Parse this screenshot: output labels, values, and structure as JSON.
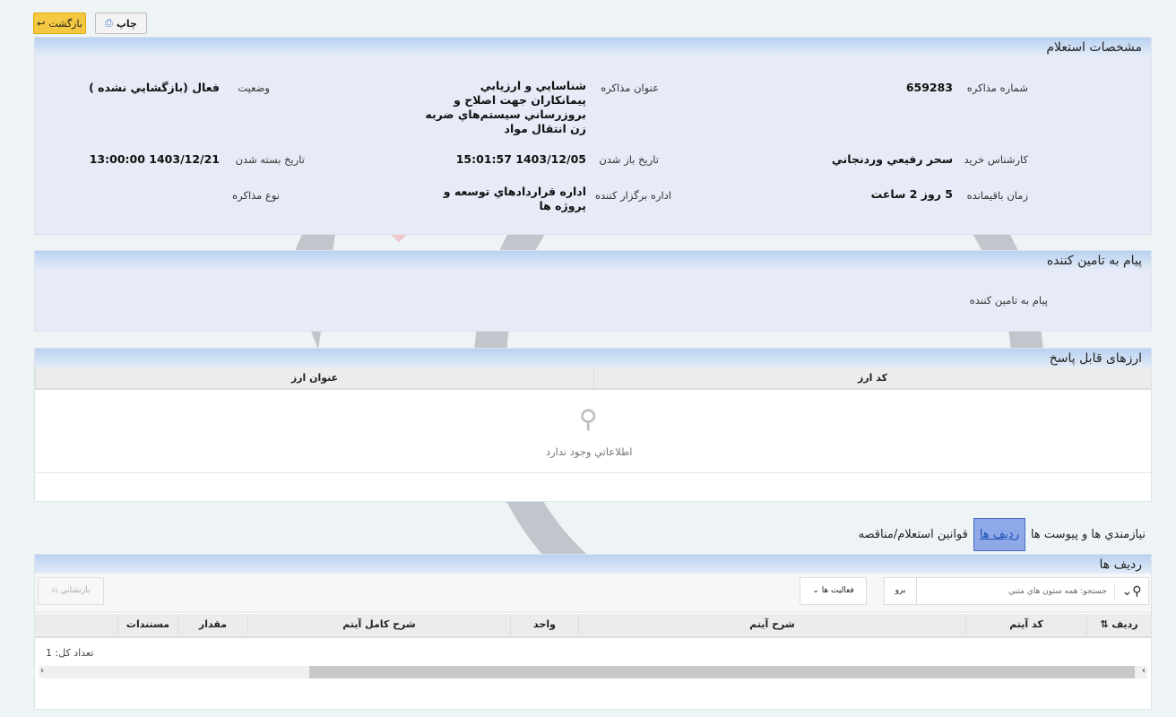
{
  "toolbar": {
    "back_label": "بازگشت",
    "print_label": "چاپ"
  },
  "details": {
    "title": "مشخصات استعلام",
    "fields": [
      {
        "label": "شماره مذاكره",
        "value": "659283"
      },
      {
        "label": "عنوان مذاكره",
        "value": "شناسايي و ارزيابي پيمانكاران جهت اصلاح و بروزرساني سيستم‌هاي ضربه زن انتقال مواد"
      },
      {
        "label": "وضعيت",
        "value": "فعال (بازگشايي نشده )"
      },
      {
        "label": "كارشناس خريد",
        "value": "سحر رفيعي وردنجاني"
      },
      {
        "label": "تاريخ باز شدن",
        "value": "1403/12/05 15:01:57"
      },
      {
        "label": "تاريخ بسته شدن",
        "value": "1403/12/21 13:00:00"
      },
      {
        "label": "زمان باقيمانده",
        "value": "5 روز 2 ساعت"
      },
      {
        "label": "اداره برگزار كننده",
        "value": "اداره قراردادهاي توسعه و پروژه ها"
      },
      {
        "label": "نوع مذاكره",
        "value": ""
      }
    ]
  },
  "message": {
    "title": "پيام به تامين كننده",
    "label": "پيام به تامين كننده"
  },
  "currencies": {
    "title": "ارزهای قابل پاسخ",
    "columns": [
      "كد ارز",
      "عنوان ارز"
    ],
    "empty_text": "اطلاعاتي وجود ندارد"
  },
  "tabs": [
    {
      "label": "نيازمندي ها و پيوست ها",
      "active": false
    },
    {
      "label": "رديف ها",
      "active": true
    },
    {
      "label": "قوانين استعلام/مناقصه",
      "active": false
    }
  ],
  "rows": {
    "title": "رديف ها",
    "search_placeholder": "جستجو: همه ستون هاي متني",
    "go_label": "برو",
    "actions_label": "فعاليت ها",
    "reset_label": "بازنشاني",
    "columns": [
      "رديف",
      "كد آيتم",
      "شرح آيتم",
      "واحد",
      "شرح كامل آيتم",
      "مقدار",
      "مستندات"
    ],
    "total_label": "تعداد كل: 1"
  },
  "colors": {
    "accent": "#f5c842",
    "header": "#b9d1f1",
    "panel": "#e7ebf7",
    "active_tab": "#8fa8e8"
  }
}
